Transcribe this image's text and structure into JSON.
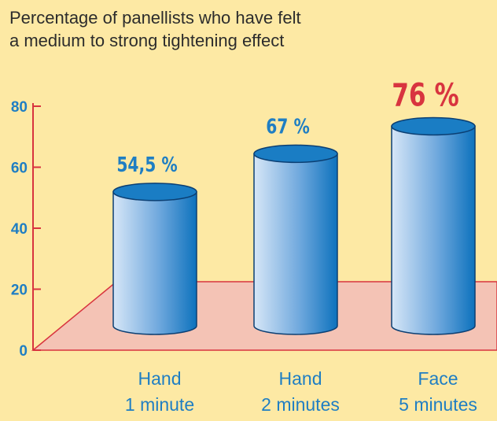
{
  "chart_data": {
    "type": "bar",
    "title": [
      "Percentage of panellists who have felt",
      "a medium to strong tightening effect"
    ],
    "categories": [
      [
        "Hand",
        "1 minute"
      ],
      [
        "Hand",
        "2 minutes"
      ],
      [
        "Face",
        "5 minutes"
      ]
    ],
    "values": [
      54.5,
      67,
      76
    ],
    "data_labels": [
      "54,5 %",
      "67 %",
      "76 %"
    ],
    "highlight_index": 2,
    "yticks": [
      0,
      20,
      40,
      60,
      80
    ],
    "ylim": [
      0,
      80
    ],
    "grid": false,
    "bar_style": "3d-cylinder"
  },
  "colors": {
    "background": "#fde9a4",
    "axis": "#d8343f",
    "floor": "#f4c3b5",
    "bar_light": "#d6e6f7",
    "bar_dark": "#0d72bd",
    "bar_top": "#1a7dc4",
    "label_blue": "#1f7ec3",
    "label_highlight": "#d8343f",
    "title": "#2c2c2c"
  }
}
